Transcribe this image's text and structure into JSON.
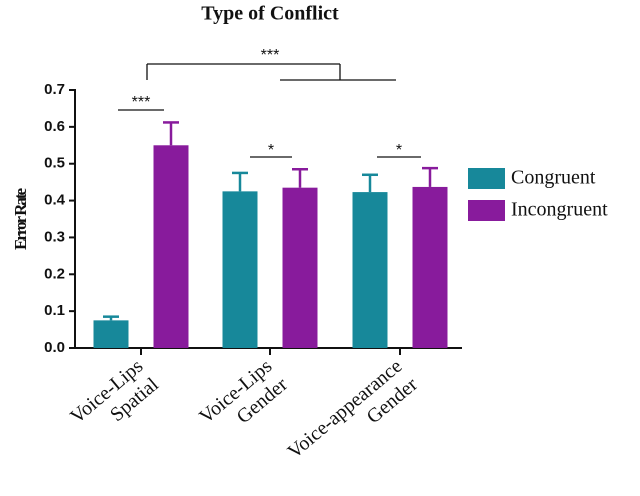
{
  "chart_data": {
    "type": "bar",
    "title": "Type of Conflict",
    "y_label": "Error Rate",
    "categories": [
      [
        "Voice-Lips",
        "Spatial"
      ],
      [
        "Voice-Lips",
        "Gender"
      ],
      [
        "Voice-appearance",
        "Gender"
      ]
    ],
    "series": [
      {
        "name": "Congruent",
        "color": "#17889a",
        "values": [
          0.075,
          0.425,
          0.423
        ],
        "errors": [
          0.01,
          0.05,
          0.047
        ]
      },
      {
        "name": "Incongruent",
        "color": "#881b9c",
        "values": [
          0.55,
          0.435,
          0.437
        ],
        "errors": [
          0.062,
          0.05,
          0.051
        ]
      }
    ],
    "ylim": [
      0,
      0.7
    ],
    "yticks": [
      {
        "value": 0,
        "label": "0.0"
      },
      0.1,
      0.2,
      0.3,
      0.4,
      0.5,
      0.6,
      0.7
    ],
    "annotations": [
      "***",
      "*",
      "*",
      "***"
    ]
  }
}
